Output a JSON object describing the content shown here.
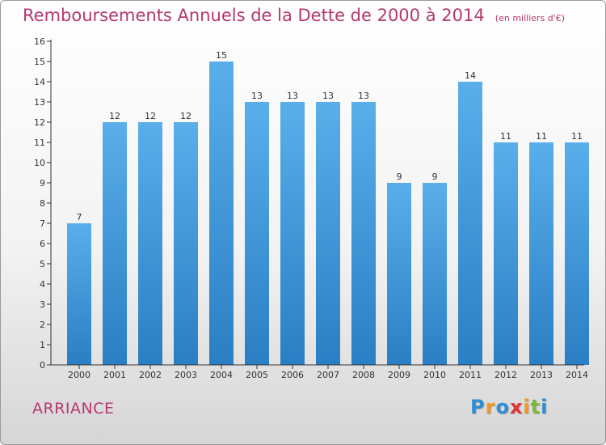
{
  "title": "Remboursements Annuels de la Dette de 2000 à 2014",
  "unit_note": "(en milliers d'€)",
  "commune": "ARRIANCE",
  "logo": {
    "text": "Proxiti",
    "letters": [
      "P",
      "r",
      "o",
      "x",
      "i",
      "t",
      "i"
    ],
    "colors": [
      "#2e8fd6",
      "#f29a1b",
      "#2e8fd6",
      "#e2333a",
      "#f29a1b",
      "#7db83a",
      "#2e8fd6"
    ]
  },
  "colors": {
    "bar_top": "#5aaeea",
    "bar_bottom": "#2a7fc4",
    "title": "#b5386e",
    "axis": "#333333"
  },
  "chart_data": {
    "type": "bar",
    "title": "Remboursements Annuels de la Dette de 2000 à 2014",
    "xlabel": "",
    "ylabel": "",
    "categories": [
      "2000",
      "2001",
      "2002",
      "2003",
      "2004",
      "2005",
      "2006",
      "2007",
      "2008",
      "2009",
      "2010",
      "2011",
      "2012",
      "2013",
      "2014"
    ],
    "values": [
      7,
      12,
      12,
      12,
      15,
      13,
      13,
      13,
      13,
      9,
      9,
      14,
      11,
      11,
      11
    ],
    "data_labels": [
      "7",
      "12",
      "12",
      "12",
      "15",
      "13",
      "13",
      "13",
      "13",
      "9",
      "9",
      "14",
      "11",
      "11",
      "11"
    ],
    "yticks": [
      "0",
      "1",
      "2",
      "3",
      "4",
      "5",
      "6",
      "7",
      "8",
      "9",
      "10",
      "11",
      "12",
      "13",
      "14",
      "15",
      "16"
    ],
    "ylim": [
      0,
      16
    ],
    "grid": false
  }
}
